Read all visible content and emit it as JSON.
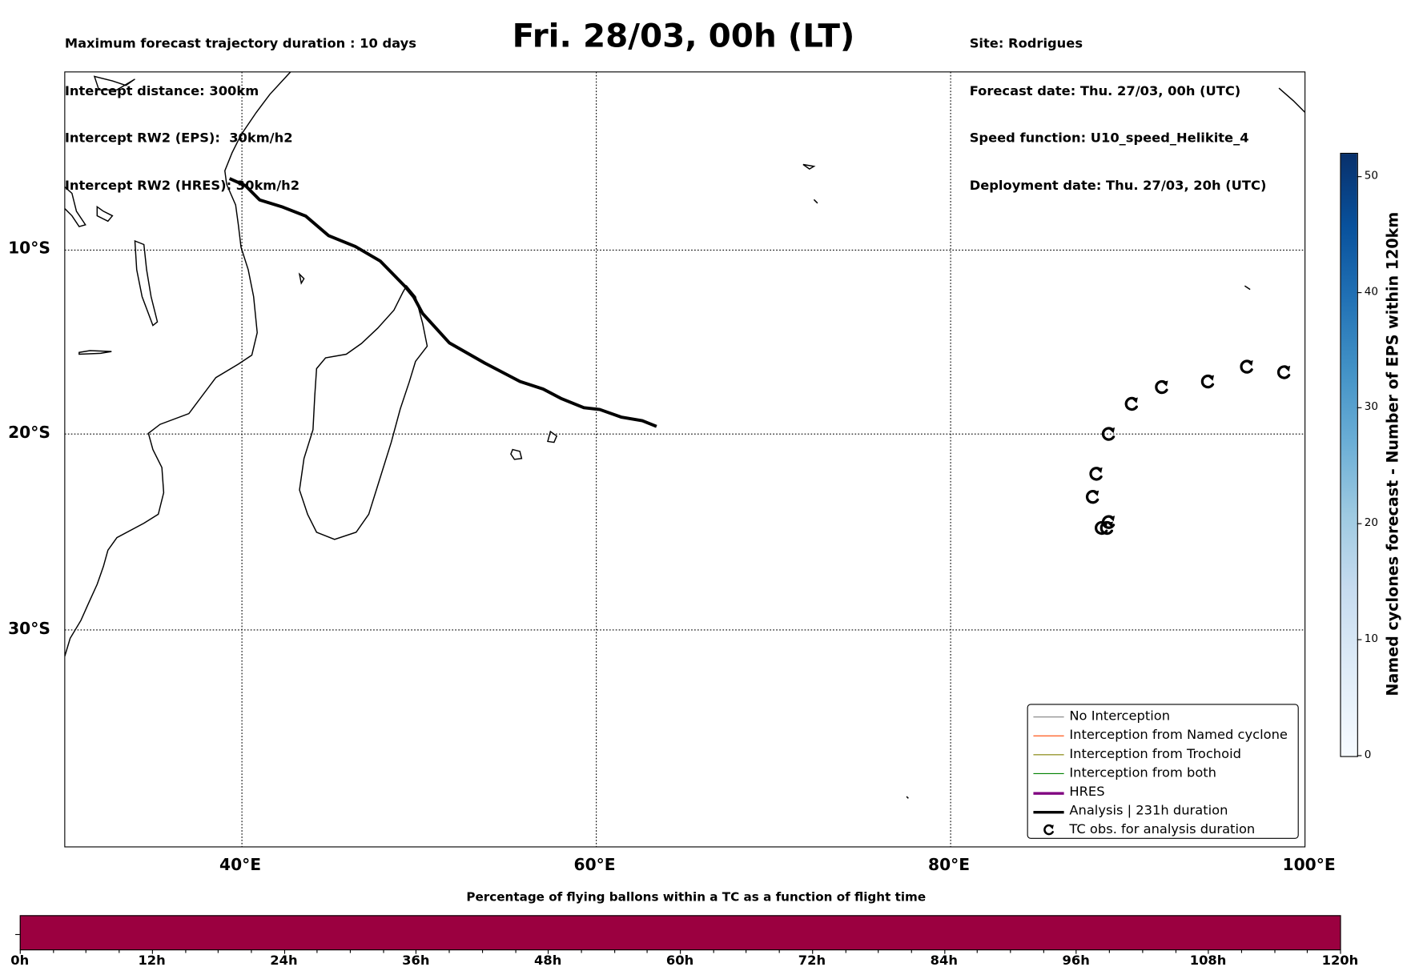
{
  "header": {
    "left": [
      "Maximum forecast trajectory duration : 10 days",
      "Intercept distance: 300km",
      "Intercept RW2 (EPS):  30km/h2",
      "Intercept RW2 (HRES): 30km/h2"
    ],
    "title": "Fri. 28/03, 00h (LT)",
    "right": [
      "Site: Rodrigues",
      "Forecast date: Thu. 27/03, 00h (UTC)",
      "Speed function: U10_speed_Helikite_4",
      "Deployment date: Thu. 27/03, 20h (UTC)"
    ]
  },
  "map": {
    "lon_range": [
      30,
      100
    ],
    "lat_range": [
      -40,
      0
    ],
    "lon_ticks": [
      {
        "value": 40,
        "label": "40°E"
      },
      {
        "value": 60,
        "label": "60°E"
      },
      {
        "value": 80,
        "label": "80°E"
      },
      {
        "value": 100,
        "label": "100°E"
      }
    ],
    "lat_ticks": [
      {
        "value": -10,
        "label": "10°S"
      },
      {
        "value": -20,
        "label": "20°S"
      },
      {
        "value": -30,
        "label": "30°S"
      }
    ],
    "analysis_track": [
      [
        39.3,
        -6.0
      ],
      [
        40.2,
        -6.4
      ],
      [
        41.0,
        -7.2
      ],
      [
        42.3,
        -7.6
      ],
      [
        43.6,
        -8.1
      ],
      [
        44.9,
        -9.2
      ],
      [
        46.4,
        -9.8
      ],
      [
        47.8,
        -10.6
      ],
      [
        49.2,
        -12.0
      ],
      [
        49.7,
        -12.6
      ],
      [
        50.2,
        -13.5
      ],
      [
        51.7,
        -15.1
      ],
      [
        53.7,
        -16.2
      ],
      [
        55.7,
        -17.2
      ],
      [
        57.0,
        -17.6
      ],
      [
        58.0,
        -18.1
      ],
      [
        59.3,
        -18.6
      ],
      [
        60.2,
        -18.7
      ],
      [
        61.4,
        -19.1
      ],
      [
        62.6,
        -19.3
      ],
      [
        63.4,
        -19.6
      ]
    ],
    "tc_obs": [
      [
        88.5,
        -24.9
      ],
      [
        88.9,
        -24.6
      ],
      [
        88.8,
        -24.9
      ],
      [
        88.0,
        -23.3
      ],
      [
        88.2,
        -22.1
      ],
      [
        88.9,
        -20.0
      ],
      [
        90.2,
        -18.4
      ],
      [
        91.9,
        -17.5
      ],
      [
        94.5,
        -17.2
      ],
      [
        96.7,
        -16.4
      ],
      [
        98.8,
        -16.7
      ]
    ],
    "track_color": "#000000"
  },
  "legend": [
    {
      "label": "No Interception",
      "color": "#808080",
      "kind": "thin"
    },
    {
      "label": "Interception from Named cyclone",
      "color": "#ff4500",
      "kind": "thin"
    },
    {
      "label": "Interception from Trochoid",
      "color": "#808000",
      "kind": "thin"
    },
    {
      "label": "Interception from both",
      "color": "#008000",
      "kind": "thin"
    },
    {
      "label": "HRES",
      "color": "#800080",
      "kind": "thick"
    },
    {
      "label": "Analysis | 231h duration",
      "color": "#000000",
      "kind": "thick"
    },
    {
      "label": "TC obs. for analysis duration",
      "color": "#000000",
      "kind": "marker"
    }
  ],
  "colorbar": {
    "title": "Named cyclones forecast - Number of EPS within 120km",
    "range": [
      0,
      52
    ],
    "ticks": [
      "0",
      "10",
      "20",
      "30",
      "40",
      "50"
    ]
  },
  "flight_bar": {
    "title": "Percentage of flying ballons within a TC as a function of flight time",
    "range_h": [
      0,
      120
    ],
    "fill_percent": 100,
    "color": "#9b0040",
    "ticks": [
      "0h",
      "12h",
      "24h",
      "36h",
      "48h",
      "60h",
      "72h",
      "84h",
      "96h",
      "108h",
      "120h"
    ]
  }
}
